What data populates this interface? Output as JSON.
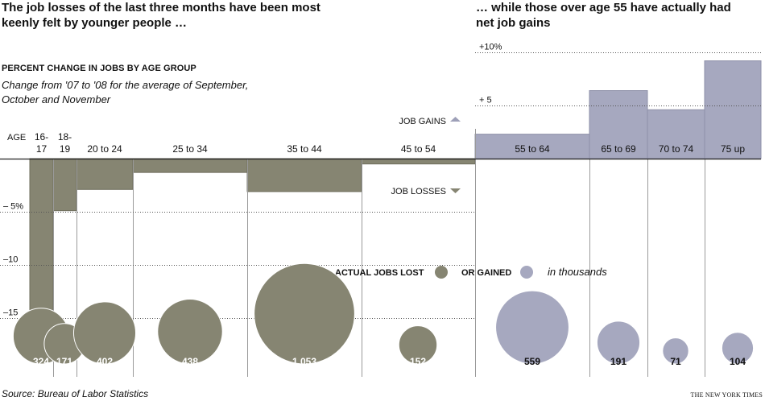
{
  "headline": {
    "left": "The job losses of the last three months have been most keenly felt by younger people …",
    "right": "… while those over age 55 have actually had net job gains"
  },
  "subtitle": {
    "caps": "PERCENT CHANGE IN JOBS BY AGE GROUP",
    "note": "Change from '07 to '08 for the average of September, October and November"
  },
  "source": "Source: Bureau of Labor Statistics",
  "credit": "THE NEW YORK TIMES",
  "colors": {
    "losses": "#868572",
    "gains": "#a6a8bf",
    "grid": "#555555"
  },
  "chart_data": {
    "type": "bar",
    "variable_width": true,
    "axis_label": "AGE",
    "categories": [
      "16-17",
      "18-19",
      "20 to 24",
      "25 to 34",
      "35 to 44",
      "45 to 54",
      "55 to 64",
      "65 to 69",
      "70 to 74",
      "75 up"
    ],
    "category_display": [
      [
        "16-",
        "17"
      ],
      [
        "18-",
        "19"
      ],
      [
        "20 to 24"
      ],
      [
        "25 to 34"
      ],
      [
        "35 to 44"
      ],
      [
        "45 to 54"
      ],
      [
        "55 to 64"
      ],
      [
        "65 to 69"
      ],
      [
        "70 to 74"
      ],
      [
        "75 up"
      ]
    ],
    "values_percent": [
      -14.8,
      -4.9,
      -2.9,
      -1.3,
      -3.1,
      -0.5,
      2.3,
      6.4,
      4.6,
      9.2
    ],
    "jobs_thousands": [
      324,
      171,
      402,
      438,
      1053,
      152,
      559,
      191,
      71,
      104
    ],
    "jobs_labels": [
      "324",
      "171",
      "402",
      "438",
      "1,053",
      "152",
      "559",
      "191",
      "71",
      "104"
    ],
    "ytick_labels": [
      {
        "value": 10,
        "label": "+10%"
      },
      {
        "value": 5,
        "label": "+ 5"
      },
      {
        "value": -5,
        "label": "– 5%"
      },
      {
        "value": -10,
        "label": "–10"
      },
      {
        "value": -15,
        "label": "–15"
      }
    ],
    "ylim": [
      -15.5,
      10
    ],
    "gains_label": "JOB GAINS",
    "losses_label": "JOB LOSSES",
    "legend": {
      "lost": "ACTUAL JOBS LOST",
      "gained": "OR GAINED",
      "units": "in thousands"
    }
  }
}
